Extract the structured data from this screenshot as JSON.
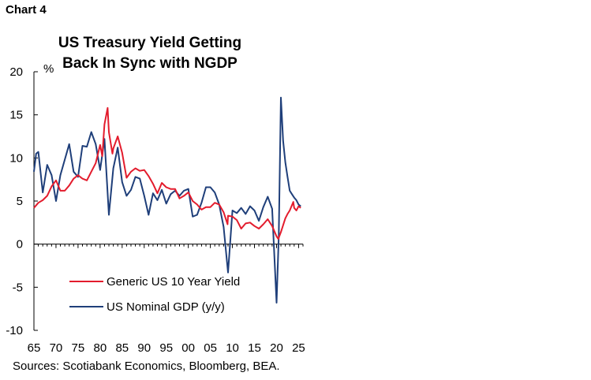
{
  "header": {
    "chart_label": "Chart 4",
    "title_line1": "US Treasury Yield Getting",
    "title_line2": "Back In Sync with NGDP"
  },
  "footer": {
    "source": "Sources: Scotiabank Economics, Bloomberg, BEA."
  },
  "colors": {
    "yield": "#e31c2d",
    "gdp": "#1f3f7a",
    "axis": "#000000"
  },
  "chart_data": {
    "type": "line",
    "title": "US Treasury Yield Getting Back In Sync with NGDP",
    "ylabel": "%",
    "xlabel": "",
    "xlim": [
      1965,
      2026
    ],
    "ylim": [
      -10,
      20
    ],
    "yticks": [
      20,
      15,
      10,
      5,
      0,
      -5,
      -10
    ],
    "ytick_labels": [
      "20",
      "15",
      "10",
      "5",
      "0",
      "-5",
      "-10"
    ],
    "xticks": [
      1965,
      1970,
      1975,
      1980,
      1985,
      1990,
      1995,
      2000,
      2005,
      2010,
      2015,
      2020,
      2025
    ],
    "xtick_labels": [
      "65",
      "70",
      "75",
      "80",
      "85",
      "90",
      "95",
      "00",
      "05",
      "10",
      "15",
      "20",
      "25"
    ],
    "legend_placement": "bottom-center",
    "grid": false,
    "series": [
      {
        "name": "Generic US 10 Year Yield",
        "color": "#e31c2d",
        "points": [
          [
            1965,
            4.2
          ],
          [
            1966,
            4.8
          ],
          [
            1967,
            5.1
          ],
          [
            1968,
            5.6
          ],
          [
            1969,
            6.7
          ],
          [
            1970,
            7.4
          ],
          [
            1971,
            6.2
          ],
          [
            1972,
            6.2
          ],
          [
            1973,
            6.8
          ],
          [
            1974,
            7.6
          ],
          [
            1975,
            8.0
          ],
          [
            1976,
            7.6
          ],
          [
            1977,
            7.4
          ],
          [
            1978,
            8.4
          ],
          [
            1979,
            9.4
          ],
          [
            1980,
            11.5
          ],
          [
            1980.5,
            10.2
          ],
          [
            1981,
            13.9
          ],
          [
            1981.7,
            15.8
          ],
          [
            1982,
            13.0
          ],
          [
            1982.8,
            10.5
          ],
          [
            1983,
            11.1
          ],
          [
            1984,
            12.5
          ],
          [
            1985,
            10.6
          ],
          [
            1986,
            7.7
          ],
          [
            1987,
            8.4
          ],
          [
            1988,
            8.8
          ],
          [
            1989,
            8.5
          ],
          [
            1990,
            8.6
          ],
          [
            1991,
            7.9
          ],
          [
            1992,
            7.0
          ],
          [
            1993,
            5.9
          ],
          [
            1994,
            7.1
          ],
          [
            1995,
            6.6
          ],
          [
            1996,
            6.4
          ],
          [
            1997,
            6.4
          ],
          [
            1998,
            5.3
          ],
          [
            1999,
            5.6
          ],
          [
            2000,
            6.0
          ],
          [
            2001,
            5.0
          ],
          [
            2002,
            4.6
          ],
          [
            2003,
            4.0
          ],
          [
            2004,
            4.3
          ],
          [
            2005,
            4.3
          ],
          [
            2006,
            4.8
          ],
          [
            2007,
            4.6
          ],
          [
            2008,
            3.7
          ],
          [
            2008.9,
            2.3
          ],
          [
            2009,
            3.3
          ],
          [
            2010,
            3.2
          ],
          [
            2011,
            2.8
          ],
          [
            2012,
            1.8
          ],
          [
            2013,
            2.4
          ],
          [
            2014,
            2.5
          ],
          [
            2015,
            2.1
          ],
          [
            2016,
            1.8
          ],
          [
            2017,
            2.3
          ],
          [
            2018,
            2.9
          ],
          [
            2019,
            2.1
          ],
          [
            2020,
            0.9
          ],
          [
            2020.4,
            0.6
          ],
          [
            2021,
            1.4
          ],
          [
            2022,
            3.0
          ],
          [
            2022.5,
            3.5
          ],
          [
            2023,
            3.9
          ],
          [
            2023.8,
            4.9
          ],
          [
            2024,
            4.2
          ],
          [
            2024.5,
            3.9
          ],
          [
            2025,
            4.4
          ],
          [
            2025.5,
            4.2
          ]
        ]
      },
      {
        "name": "US Nominal GDP (y/y)",
        "color": "#1f3f7a",
        "points": [
          [
            1965,
            8.4
          ],
          [
            1965.5,
            10.5
          ],
          [
            1966,
            10.7
          ],
          [
            1967,
            6.0
          ],
          [
            1968,
            9.2
          ],
          [
            1969,
            8.0
          ],
          [
            1970,
            5.0
          ],
          [
            1971,
            8.0
          ],
          [
            1972,
            9.8
          ],
          [
            1973,
            11.6
          ],
          [
            1974,
            8.4
          ],
          [
            1975,
            7.8
          ],
          [
            1976,
            11.4
          ],
          [
            1977,
            11.3
          ],
          [
            1978,
            13.0
          ],
          [
            1979,
            11.6
          ],
          [
            1980,
            8.6
          ],
          [
            1981,
            12.2
          ],
          [
            1982,
            3.4
          ],
          [
            1983,
            8.8
          ],
          [
            1984,
            11.2
          ],
          [
            1985,
            7.2
          ],
          [
            1986,
            5.6
          ],
          [
            1987,
            6.3
          ],
          [
            1988,
            7.8
          ],
          [
            1989,
            7.6
          ],
          [
            1990,
            5.6
          ],
          [
            1991,
            3.4
          ],
          [
            1992,
            5.9
          ],
          [
            1993,
            5.1
          ],
          [
            1994,
            6.3
          ],
          [
            1995,
            4.7
          ],
          [
            1996,
            5.8
          ],
          [
            1997,
            6.2
          ],
          [
            1998,
            5.6
          ],
          [
            1999,
            6.2
          ],
          [
            2000,
            6.4
          ],
          [
            2001,
            3.2
          ],
          [
            2002,
            3.4
          ],
          [
            2003,
            4.8
          ],
          [
            2004,
            6.6
          ],
          [
            2005,
            6.6
          ],
          [
            2006,
            6.0
          ],
          [
            2007,
            4.6
          ],
          [
            2008,
            2.0
          ],
          [
            2009,
            -3.3
          ],
          [
            2010,
            3.9
          ],
          [
            2011,
            3.6
          ],
          [
            2012,
            4.2
          ],
          [
            2013,
            3.5
          ],
          [
            2014,
            4.4
          ],
          [
            2015,
            3.9
          ],
          [
            2016,
            2.7
          ],
          [
            2017,
            4.3
          ],
          [
            2018,
            5.5
          ],
          [
            2019,
            4.1
          ],
          [
            2020,
            -6.8
          ],
          [
            2020.5,
            1.0
          ],
          [
            2021,
            17.0
          ],
          [
            2021.5,
            12.0
          ],
          [
            2022,
            9.5
          ],
          [
            2022.5,
            7.8
          ],
          [
            2023,
            6.2
          ],
          [
            2023.5,
            5.8
          ],
          [
            2024,
            5.4
          ],
          [
            2024.5,
            5.1
          ],
          [
            2025,
            4.6
          ],
          [
            2025.5,
            4.4
          ]
        ]
      }
    ]
  }
}
